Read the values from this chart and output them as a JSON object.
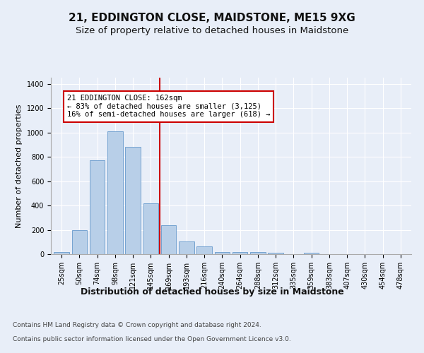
{
  "title": "21, EDDINGTON CLOSE, MAIDSTONE, ME15 9XG",
  "subtitle": "Size of property relative to detached houses in Maidstone",
  "xlabel": "Distribution of detached houses by size in Maidstone",
  "ylabel": "Number of detached properties",
  "categories": [
    "25sqm",
    "50sqm",
    "74sqm",
    "98sqm",
    "121sqm",
    "145sqm",
    "169sqm",
    "193sqm",
    "216sqm",
    "240sqm",
    "264sqm",
    "288sqm",
    "312sqm",
    "335sqm",
    "359sqm",
    "383sqm",
    "407sqm",
    "430sqm",
    "454sqm",
    "478sqm"
  ],
  "values": [
    20,
    200,
    770,
    1010,
    880,
    420,
    235,
    105,
    65,
    20,
    20,
    15,
    10,
    0,
    10,
    0,
    0,
    0,
    0,
    0
  ],
  "bar_color": "#b8cfe8",
  "bar_edgecolor": "#6699cc",
  "bar_width": 0.85,
  "vline_x": 5.5,
  "vline_color": "#cc0000",
  "annotation_line1": "21 EDDINGTON CLOSE: 162sqm",
  "annotation_line2": "← 83% of detached houses are smaller (3,125)",
  "annotation_line3": "16% of semi-detached houses are larger (618) →",
  "ylim": [
    0,
    1450
  ],
  "yticks": [
    0,
    200,
    400,
    600,
    800,
    1000,
    1200,
    1400
  ],
  "footer_line1": "Contains HM Land Registry data © Crown copyright and database right 2024.",
  "footer_line2": "Contains public sector information licensed under the Open Government Licence v3.0.",
  "bg_color": "#e8eef8",
  "plot_bg_color": "#e8eef8",
  "grid_color": "#ffffff",
  "title_fontsize": 11,
  "subtitle_fontsize": 9.5,
  "xlabel_fontsize": 9,
  "ylabel_fontsize": 8,
  "tick_fontsize": 7,
  "footer_fontsize": 6.5,
  "annot_fontsize": 7.5
}
